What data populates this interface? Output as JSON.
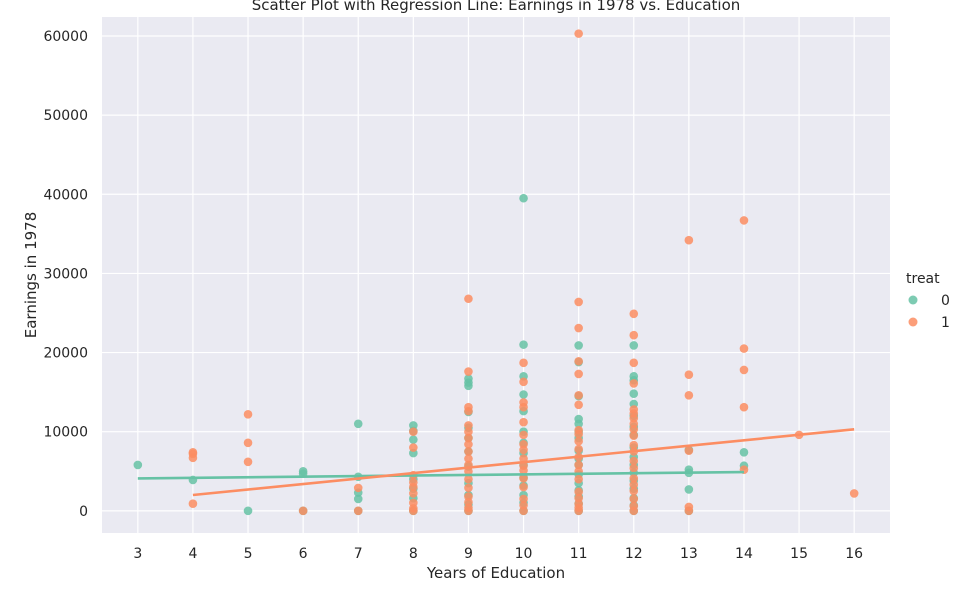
{
  "chart_data": {
    "type": "scatter",
    "title": "Scatter Plot with Regression Line: Earnings in 1978 vs. Education",
    "xlabel": "Years of Education",
    "ylabel": "Earnings in 1978",
    "xlim": [
      2.35,
      16.65
    ],
    "ylim": [
      -2800,
      62400
    ],
    "xticks": [
      3,
      4,
      5,
      6,
      7,
      8,
      9,
      10,
      11,
      12,
      13,
      14,
      15,
      16
    ],
    "yticks": [
      0,
      10000,
      20000,
      30000,
      40000,
      50000,
      60000
    ],
    "grid": true,
    "legend": {
      "title": "treat",
      "placement": "right"
    },
    "series": [
      {
        "name": "0",
        "color": "#66c2a5",
        "points": [
          [
            3,
            5800
          ],
          [
            4,
            3900
          ],
          [
            5,
            0
          ],
          [
            6,
            5000
          ],
          [
            6,
            4700
          ],
          [
            6,
            0
          ],
          [
            7,
            11000
          ],
          [
            7,
            4300
          ],
          [
            7,
            2300
          ],
          [
            7,
            1500
          ],
          [
            7,
            0
          ],
          [
            8,
            10800
          ],
          [
            8,
            10100
          ],
          [
            8,
            9000
          ],
          [
            8,
            7300
          ],
          [
            8,
            4000
          ],
          [
            8,
            2800
          ],
          [
            8,
            1600
          ],
          [
            8,
            0
          ],
          [
            9,
            16700
          ],
          [
            9,
            16200
          ],
          [
            9,
            15800
          ],
          [
            9,
            12500
          ],
          [
            9,
            10500
          ],
          [
            9,
            9200
          ],
          [
            9,
            7500
          ],
          [
            9,
            5600
          ],
          [
            9,
            3500
          ],
          [
            9,
            2000
          ],
          [
            9,
            800
          ],
          [
            9,
            0
          ],
          [
            10,
            39500
          ],
          [
            10,
            21000
          ],
          [
            10,
            17000
          ],
          [
            10,
            14700
          ],
          [
            10,
            12600
          ],
          [
            10,
            10000
          ],
          [
            10,
            8600
          ],
          [
            10,
            7300
          ],
          [
            10,
            5800
          ],
          [
            10,
            4200
          ],
          [
            10,
            3200
          ],
          [
            10,
            2000
          ],
          [
            10,
            1000
          ],
          [
            10,
            0
          ],
          [
            11,
            20900
          ],
          [
            11,
            18800
          ],
          [
            11,
            14500
          ],
          [
            11,
            11600
          ],
          [
            11,
            11000
          ],
          [
            11,
            10000
          ],
          [
            11,
            9200
          ],
          [
            11,
            7600
          ],
          [
            11,
            6600
          ],
          [
            11,
            5800
          ],
          [
            11,
            4600
          ],
          [
            11,
            3500
          ],
          [
            11,
            2600
          ],
          [
            11,
            1800
          ],
          [
            11,
            900
          ],
          [
            11,
            0
          ],
          [
            12,
            20900
          ],
          [
            12,
            17000
          ],
          [
            12,
            16500
          ],
          [
            12,
            14800
          ],
          [
            12,
            13500
          ],
          [
            12,
            12000
          ],
          [
            12,
            10600
          ],
          [
            12,
            9600
          ],
          [
            12,
            8000
          ],
          [
            12,
            6800
          ],
          [
            12,
            5800
          ],
          [
            12,
            4800
          ],
          [
            12,
            3800
          ],
          [
            12,
            2800
          ],
          [
            12,
            1600
          ],
          [
            12,
            700
          ],
          [
            12,
            0
          ],
          [
            13,
            7700
          ],
          [
            13,
            5200
          ],
          [
            13,
            4800
          ],
          [
            13,
            2700
          ],
          [
            13,
            0
          ],
          [
            14,
            7400
          ],
          [
            14,
            5700
          ]
        ],
        "regression": {
          "x": [
            3,
            14
          ],
          "y": [
            4100,
            4900
          ]
        }
      },
      {
        "name": "1",
        "color": "#fc8d62",
        "points": [
          [
            4,
            7400
          ],
          [
            4,
            7200
          ],
          [
            4,
            6700
          ],
          [
            4,
            900
          ],
          [
            5,
            12200
          ],
          [
            5,
            8600
          ],
          [
            5,
            6200
          ],
          [
            6,
            0
          ],
          [
            7,
            2900
          ],
          [
            7,
            0
          ],
          [
            8,
            10000
          ],
          [
            8,
            8000
          ],
          [
            8,
            4500
          ],
          [
            8,
            3600
          ],
          [
            8,
            3000
          ],
          [
            8,
            2200
          ],
          [
            8,
            1000
          ],
          [
            8,
            300
          ],
          [
            8,
            0
          ],
          [
            9,
            26800
          ],
          [
            9,
            17600
          ],
          [
            9,
            13100
          ],
          [
            9,
            12600
          ],
          [
            9,
            10800
          ],
          [
            9,
            10000
          ],
          [
            9,
            9200
          ],
          [
            9,
            8400
          ],
          [
            9,
            7500
          ],
          [
            9,
            6600
          ],
          [
            9,
            5800
          ],
          [
            9,
            5000
          ],
          [
            9,
            4000
          ],
          [
            9,
            2900
          ],
          [
            9,
            1800
          ],
          [
            9,
            1100
          ],
          [
            9,
            400
          ],
          [
            9,
            0
          ],
          [
            10,
            18700
          ],
          [
            10,
            16300
          ],
          [
            10,
            13700
          ],
          [
            10,
            13100
          ],
          [
            10,
            11200
          ],
          [
            10,
            9600
          ],
          [
            10,
            8400
          ],
          [
            10,
            7700
          ],
          [
            10,
            6600
          ],
          [
            10,
            5700
          ],
          [
            10,
            5100
          ],
          [
            10,
            4100
          ],
          [
            10,
            3000
          ],
          [
            10,
            1500
          ],
          [
            10,
            700
          ],
          [
            10,
            0
          ],
          [
            11,
            60300
          ],
          [
            11,
            26400
          ],
          [
            11,
            23100
          ],
          [
            11,
            18900
          ],
          [
            11,
            17300
          ],
          [
            11,
            14600
          ],
          [
            11,
            13400
          ],
          [
            11,
            10200
          ],
          [
            11,
            9700
          ],
          [
            11,
            8800
          ],
          [
            11,
            7800
          ],
          [
            11,
            6800
          ],
          [
            11,
            5800
          ],
          [
            11,
            5000
          ],
          [
            11,
            4000
          ],
          [
            11,
            2400
          ],
          [
            11,
            1600
          ],
          [
            11,
            900
          ],
          [
            11,
            400
          ],
          [
            11,
            0
          ],
          [
            12,
            24900
          ],
          [
            12,
            22200
          ],
          [
            12,
            18700
          ],
          [
            12,
            16100
          ],
          [
            12,
            12800
          ],
          [
            12,
            12300
          ],
          [
            12,
            11700
          ],
          [
            12,
            11000
          ],
          [
            12,
            10300
          ],
          [
            12,
            9500
          ],
          [
            12,
            8300
          ],
          [
            12,
            7500
          ],
          [
            12,
            6300
          ],
          [
            12,
            5400
          ],
          [
            12,
            4100
          ],
          [
            12,
            3300
          ],
          [
            12,
            2500
          ],
          [
            12,
            1500
          ],
          [
            12,
            600
          ],
          [
            12,
            0
          ],
          [
            13,
            34200
          ],
          [
            13,
            17200
          ],
          [
            13,
            14600
          ],
          [
            13,
            7600
          ],
          [
            13,
            500
          ],
          [
            13,
            0
          ],
          [
            14,
            36700
          ],
          [
            14,
            20500
          ],
          [
            14,
            17800
          ],
          [
            14,
            13100
          ],
          [
            14,
            5200
          ],
          [
            15,
            9600
          ],
          [
            16,
            2200
          ]
        ],
        "regression": {
          "x": [
            4,
            16
          ],
          "y": [
            2000,
            10300
          ]
        }
      }
    ]
  }
}
